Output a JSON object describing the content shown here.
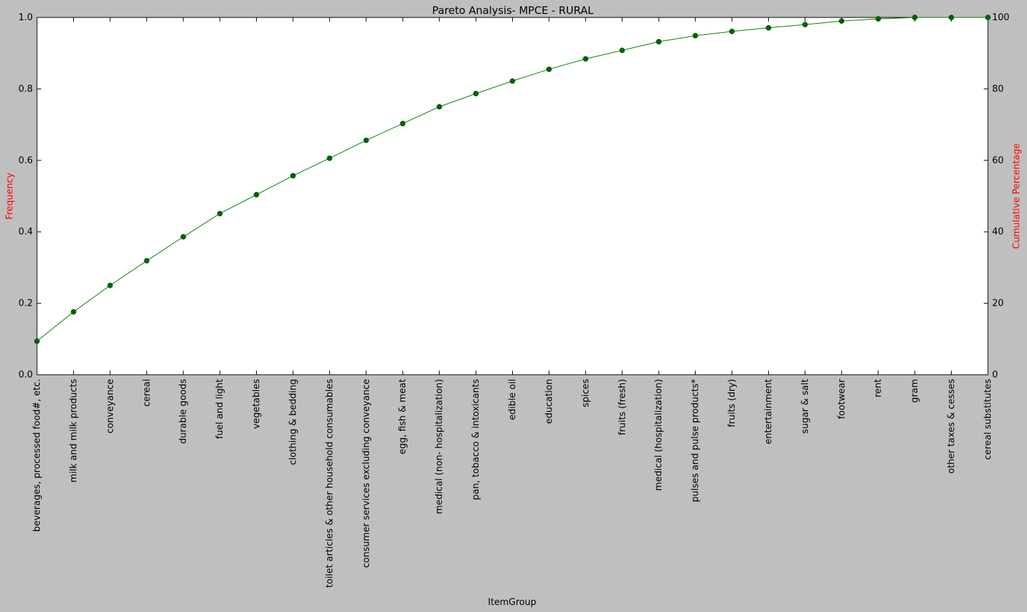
{
  "chart_data": {
    "type": "line",
    "title": "Pareto Analysis- MPCE - RURAL",
    "xlabel": "ItemGroup",
    "ylabel_left": "Frequency",
    "ylabel_right": "Cumulative Percentage",
    "ylim_left": [
      0,
      1.0
    ],
    "ylim_right": [
      0,
      100
    ],
    "yticks_left": [
      "0.0",
      "0.2",
      "0.4",
      "0.6",
      "0.8",
      "1.0"
    ],
    "yticks_right": [
      "0",
      "20",
      "40",
      "60",
      "80",
      "100"
    ],
    "grid": false,
    "categories": [
      "beverages, processed food#, etc.",
      "milk and milk products",
      "conveyance",
      "cereal",
      "durable goods",
      "fuel and light",
      "vegetables",
      "clothing & bedding",
      "toilet articles & other household consumables",
      "consumer services excluding conveyance",
      "egg, fish & meat",
      "medical (non- hospitalization)",
      "pan, tobacco & intoxicants",
      "edible oil",
      "education",
      "spices",
      "fruits (fresh)",
      "medical (hospitalization)",
      "pulses and pulse products*",
      "fruits (dry)",
      "entertainment",
      "sugar & salt",
      "footwear",
      "rent",
      "gram",
      "other taxes & cesses",
      "cereal substitutes"
    ],
    "series": [
      {
        "axis": "right",
        "values": [
          9.4,
          17.6,
          25.0,
          31.9,
          38.6,
          45.1,
          50.4,
          55.7,
          60.6,
          65.6,
          70.3,
          75.0,
          78.7,
          82.2,
          85.5,
          88.4,
          90.8,
          93.2,
          94.9,
          96.1,
          97.1,
          98.0,
          99.0,
          99.6,
          100.0,
          100.0,
          100.0
        ]
      }
    ],
    "colors": {
      "line": "#008000",
      "marker": "#006400",
      "axis_label": "#ff0000",
      "plot_background": "#ffffff",
      "figure_background": "#bfbfbf"
    }
  }
}
